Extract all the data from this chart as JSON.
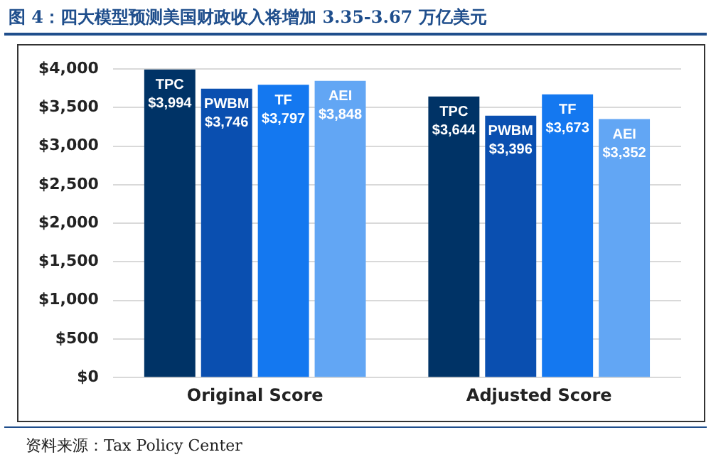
{
  "chart_data": {
    "type": "bar",
    "title": "图 4：四大模型预测美国财政收入将增加 3.35-3.67 万亿美元",
    "annotations": [
      "资料来源：Tax Policy Center"
    ],
    "categories": [
      "Original Score",
      "Adjusted Score"
    ],
    "series": [
      {
        "name": "TPC",
        "color": "#003366",
        "values": [
          3994,
          3644
        ],
        "value_labels": [
          "$3,994",
          "$3,644"
        ]
      },
      {
        "name": "PWBM",
        "color": "#0a4fb0",
        "values": [
          3746,
          3396
        ],
        "value_labels": [
          "$3,746",
          "$3,396"
        ]
      },
      {
        "name": "TF",
        "color": "#1478f0",
        "values": [
          3797,
          3673
        ],
        "value_labels": [
          "$3,797",
          "$3,673"
        ]
      },
      {
        "name": "AEI",
        "color": "#62a6f4",
        "values": [
          3848,
          3352
        ],
        "value_labels": [
          "$3,848",
          "$3,352"
        ]
      }
    ],
    "ylim": [
      0,
      4000
    ],
    "yticks": [
      {
        "value": 0,
        "label": "$0"
      },
      {
        "value": 500,
        "label": "$500"
      },
      {
        "value": 1000,
        "label": "$1,000"
      },
      {
        "value": 1500,
        "label": "$1,500"
      },
      {
        "value": 2000,
        "label": "$2,000"
      },
      {
        "value": 2500,
        "label": "$2,500"
      },
      {
        "value": 3000,
        "label": "$3,000"
      },
      {
        "value": 3500,
        "label": "$3,500"
      },
      {
        "value": 4000,
        "label": "$4,000"
      }
    ],
    "grid": "y",
    "legend": false
  }
}
